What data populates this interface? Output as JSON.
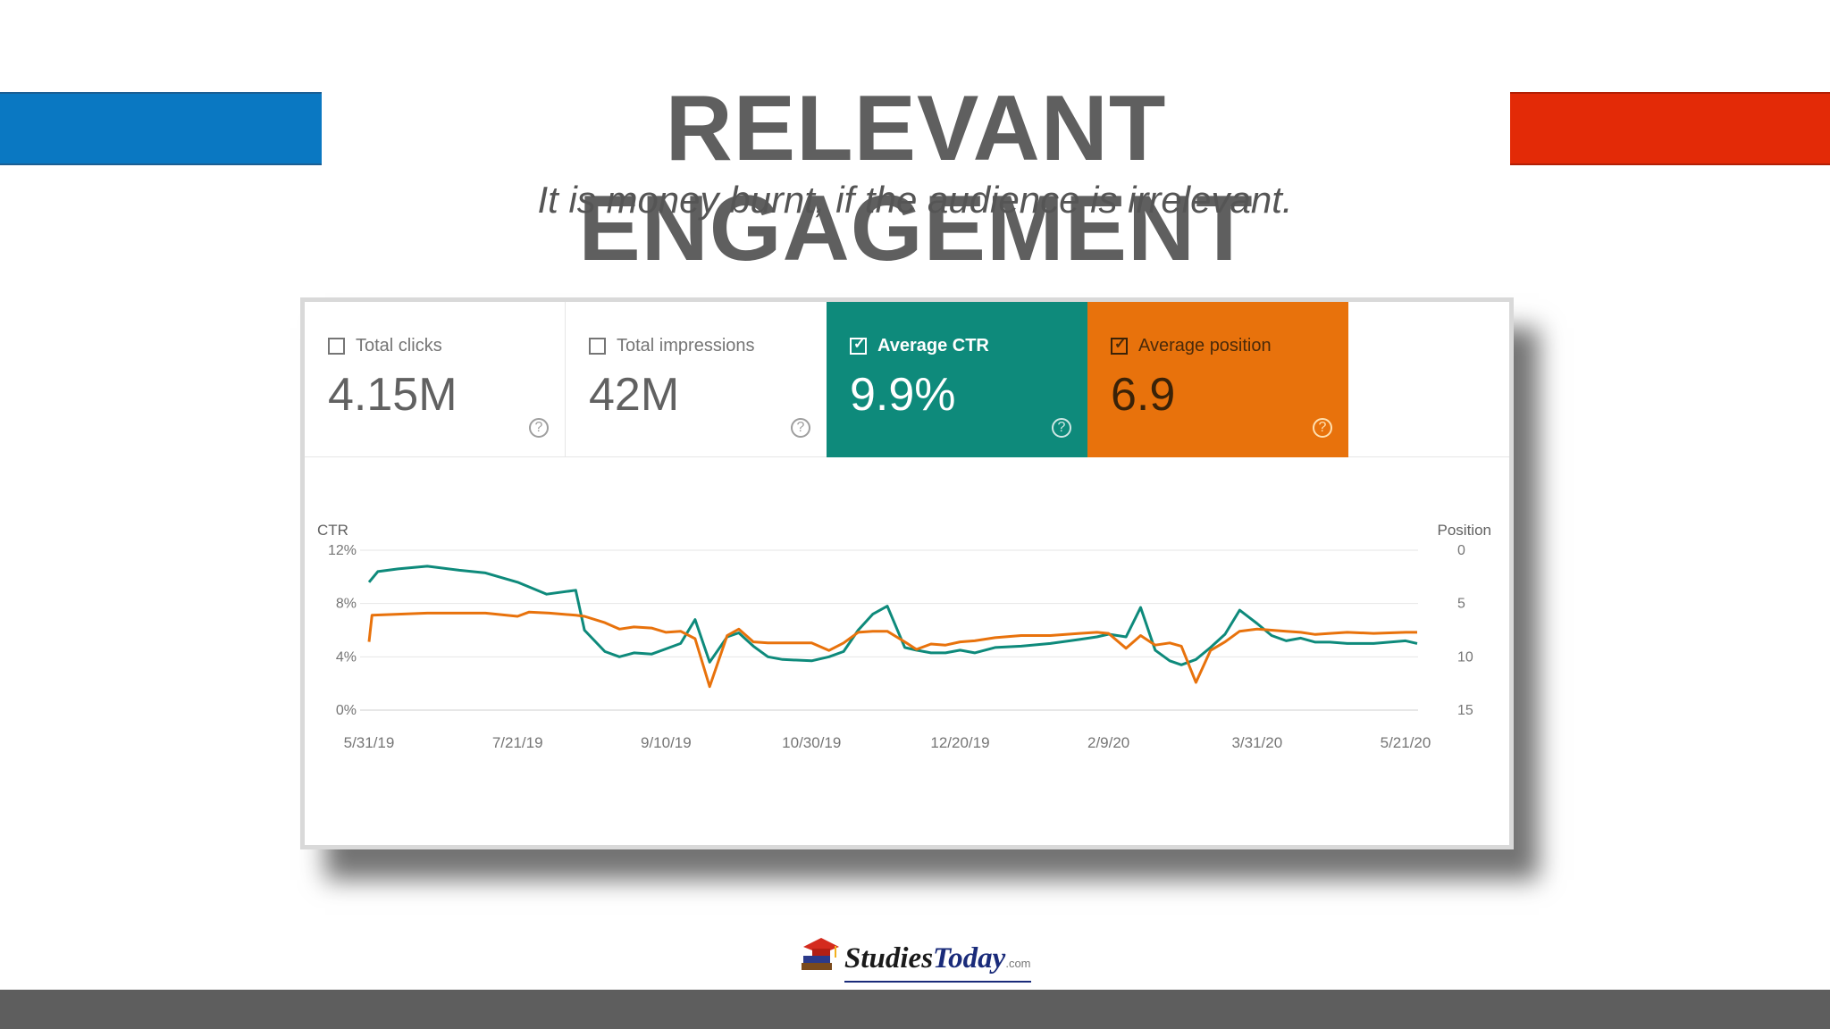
{
  "slide": {
    "title": "RELEVANT ENGAGEMENT",
    "subtitle": "It is money burnt, if the audience is irrelevant.",
    "colors": {
      "left_bar": "#0a78c2",
      "right_bar": "#e32a07",
      "title": "#5f5f5f",
      "footer": "#5e5e5e"
    }
  },
  "metrics": [
    {
      "label": "Total clicks",
      "value": "4.15M",
      "checked": false
    },
    {
      "label": "Total impressions",
      "value": "42M",
      "checked": false
    },
    {
      "label": "Average CTR",
      "value": "9.9%",
      "checked": true,
      "color": "#0e8a7b"
    },
    {
      "label": "Average position",
      "value": "6.9",
      "checked": true,
      "color": "#e8720c"
    }
  ],
  "help_glyph": "?",
  "chart_data": {
    "type": "line",
    "left_axis_label": "CTR",
    "right_axis_label": "Position",
    "left_ticks": [
      "12%",
      "8%",
      "4%",
      "0%"
    ],
    "right_ticks": [
      "0",
      "5",
      "10",
      "15"
    ],
    "ylim_left": [
      0,
      12
    ],
    "ylim_right_inverted": [
      0,
      15
    ],
    "x_tick_labels": [
      "5/31/19",
      "7/21/19",
      "9/10/19",
      "10/30/19",
      "12/20/19",
      "2/9/20",
      "3/31/20",
      "5/21/20"
    ],
    "grid": true,
    "series": [
      {
        "name": "Average CTR",
        "axis": "left",
        "color": "#0e8a7b",
        "x": [
          "5/31/19",
          "6/3/19",
          "6/10/19",
          "6/20/19",
          "7/1/19",
          "7/10/19",
          "7/21/19",
          "7/31/19",
          "8/10/19",
          "8/13/19",
          "8/20/19",
          "8/25/19",
          "8/30/19",
          "9/5/19",
          "9/10/19",
          "9/15/19",
          "9/20/19",
          "9/25/19",
          "10/1/19",
          "10/5/19",
          "10/10/19",
          "10/15/19",
          "10/20/19",
          "10/30/19",
          "11/5/19",
          "11/10/19",
          "11/15/19",
          "11/20/19",
          "11/25/19",
          "12/1/19",
          "12/5/19",
          "12/10/19",
          "12/15/19",
          "12/20/19",
          "12/25/19",
          "1/1/20",
          "1/10/20",
          "1/20/20",
          "1/30/20",
          "2/5/20",
          "2/9/20",
          "2/15/20",
          "2/20/20",
          "2/25/20",
          "3/1/20",
          "3/5/20",
          "3/10/20",
          "3/15/20",
          "3/20/20",
          "3/25/20",
          "3/31/20",
          "4/5/20",
          "4/10/20",
          "4/15/20",
          "4/20/20",
          "4/25/20",
          "5/1/20",
          "5/10/20",
          "5/21/20",
          "5/25/20"
        ],
        "values": [
          9.6,
          10.4,
          10.6,
          10.8,
          10.5,
          10.3,
          9.6,
          8.7,
          9.0,
          6.0,
          4.4,
          4.0,
          4.3,
          4.2,
          4.6,
          5.0,
          6.8,
          3.6,
          5.5,
          5.8,
          4.8,
          4.0,
          3.8,
          3.7,
          4.0,
          4.4,
          6.0,
          7.2,
          7.8,
          4.7,
          4.5,
          4.3,
          4.3,
          4.5,
          4.3,
          4.7,
          4.8,
          5.0,
          5.3,
          5.5,
          5.7,
          5.5,
          7.7,
          4.5,
          3.7,
          3.4,
          3.8,
          4.7,
          5.7,
          7.5,
          6.5,
          5.6,
          5.2,
          5.4,
          5.1,
          5.1,
          5.0,
          5.0,
          5.2,
          5.0
        ]
      },
      {
        "name": "Average position",
        "axis": "right",
        "color": "#e8720c",
        "x": [
          "5/31/19",
          "6/1/19",
          "6/10/19",
          "6/20/19",
          "7/1/19",
          "7/10/19",
          "7/21/19",
          "7/25/19",
          "8/1/19",
          "8/10/19",
          "8/13/19",
          "8/20/19",
          "8/25/19",
          "8/30/19",
          "9/5/19",
          "9/10/19",
          "9/15/19",
          "9/20/19",
          "9/25/19",
          "10/1/19",
          "10/5/19",
          "10/10/19",
          "10/15/19",
          "10/20/19",
          "10/30/19",
          "11/5/19",
          "11/10/19",
          "11/15/19",
          "11/20/19",
          "11/25/19",
          "12/1/19",
          "12/5/19",
          "12/10/19",
          "12/15/19",
          "12/20/19",
          "12/25/19",
          "1/1/20",
          "1/10/20",
          "1/20/20",
          "1/30/20",
          "2/5/20",
          "2/9/20",
          "2/15/20",
          "2/20/20",
          "2/25/20",
          "3/1/20",
          "3/5/20",
          "3/10/20",
          "3/15/20",
          "3/20/20",
          "3/25/20",
          "3/31/20",
          "4/5/20",
          "4/10/20",
          "4/15/20",
          "4/20/20",
          "4/25/20",
          "5/1/20",
          "5/10/20",
          "5/21/20",
          "5/25/20"
        ],
        "values": [
          8.6,
          6.1,
          6.0,
          5.9,
          5.9,
          5.9,
          6.2,
          5.8,
          5.9,
          6.1,
          6.2,
          6.8,
          7.4,
          7.2,
          7.3,
          7.7,
          7.6,
          8.3,
          12.8,
          8.0,
          7.4,
          8.6,
          8.7,
          8.7,
          8.7,
          9.4,
          8.7,
          7.7,
          7.6,
          7.6,
          8.6,
          9.3,
          8.8,
          8.9,
          8.6,
          8.5,
          8.2,
          8.0,
          8.0,
          7.8,
          7.7,
          7.8,
          9.2,
          8.0,
          8.9,
          8.7,
          9.0,
          12.4,
          9.4,
          8.6,
          7.6,
          7.4,
          7.5,
          7.6,
          7.7,
          7.9,
          7.8,
          7.7,
          7.8,
          7.7,
          7.7
        ]
      }
    ]
  },
  "logo": {
    "word1": "Studies",
    "word2": "Today",
    "suffix": ".com"
  }
}
